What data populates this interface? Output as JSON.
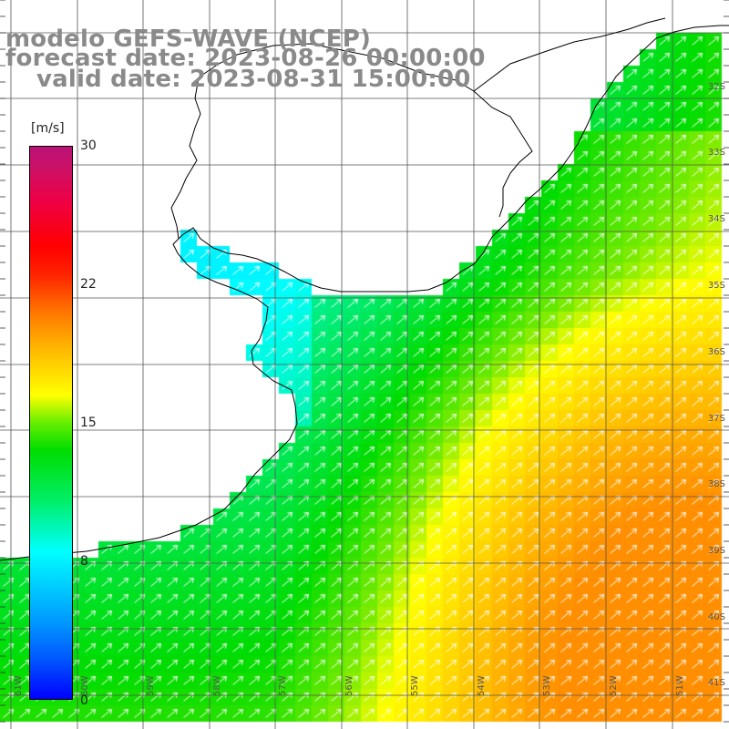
{
  "titles": {
    "model": "modelo GEFS-WAVE (NCEP)",
    "forecast": "forecast date: 2023-08-26 00:00:00",
    "valid": "valid date: 2023-08-31 15:00:00"
  },
  "colorbar": {
    "units": "[m/s]",
    "ticks": [
      "30",
      "22",
      "15",
      "8",
      "0"
    ],
    "tick_values": [
      30,
      22,
      15,
      8,
      0
    ],
    "min": 0,
    "max": 30,
    "colors": {
      "0": "#0000ff",
      "8": "#00ffff",
      "15": "#ffff00",
      "22": "#ff7700",
      "30": "#bb1177"
    }
  },
  "map": {
    "region": "Uruguay / Rio de la Plata / SW Atlantic",
    "lon_range": [
      "61W",
      "50W"
    ],
    "lat_range": [
      "32S",
      "41S"
    ],
    "lat_labels": [
      "32S",
      "33S",
      "34S",
      "35S",
      "36S",
      "37S",
      "38S",
      "39S",
      "40S",
      "41S"
    ],
    "lon_labels": [
      "61W",
      "60W",
      "59W",
      "58W",
      "57W",
      "56W",
      "55W",
      "54W",
      "53W",
      "52W",
      "51W"
    ],
    "field": "wind speed with direction arrows",
    "arrow_color": "#ffffff",
    "land_color": "#ffffff",
    "coast_color": "#000000",
    "grid_color": "#555555"
  }
}
